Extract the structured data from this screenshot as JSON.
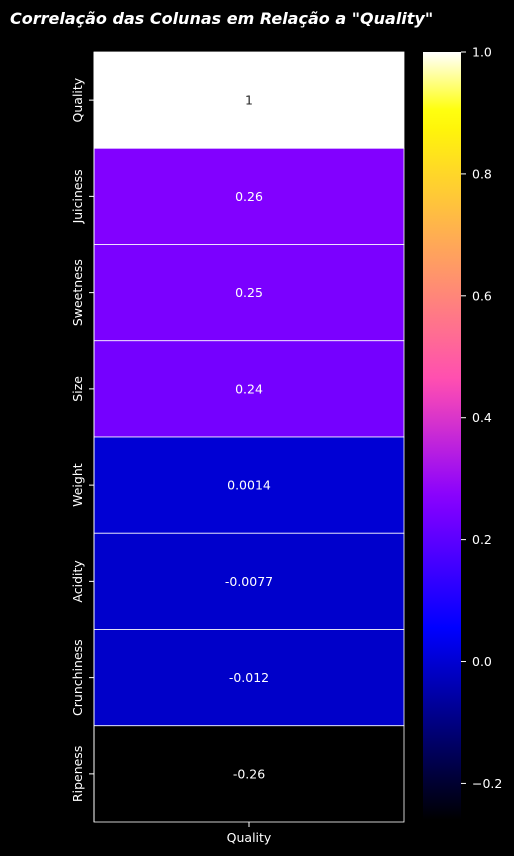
{
  "chart_data": {
    "type": "heatmap",
    "title": "Correlação das Colunas em Relação a \"Quality\"",
    "columns": [
      "Quality"
    ],
    "rows": [
      "Quality",
      "Juiciness",
      "Sweetness",
      "Size",
      "Weight",
      "Acidity",
      "Crunchiness",
      "Ripeness"
    ],
    "values": [
      1,
      0.26,
      0.25,
      0.24,
      0.0014,
      -0.0077,
      -0.012,
      -0.26
    ],
    "value_labels": [
      "1",
      "0.26",
      "0.25",
      "0.24",
      "0.0014",
      "-0.0077",
      "-0.012",
      "-0.26"
    ],
    "colormap": "gnuplot2",
    "colorbar": {
      "range": [
        -0.26,
        1.0
      ],
      "ticks": [
        -0.2,
        0.0,
        0.2,
        0.4,
        0.6,
        0.8,
        1.0
      ],
      "tick_labels": [
        "−0.2",
        "0.0",
        "0.2",
        "0.4",
        "0.6",
        "0.8",
        "1.0"
      ]
    },
    "grid_line_color": "#ffffff",
    "background": "#000000"
  }
}
